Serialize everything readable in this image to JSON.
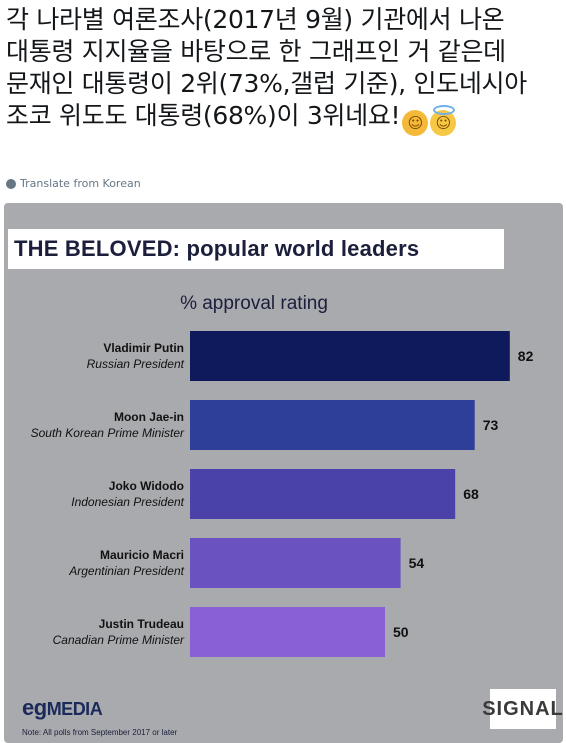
{
  "tweet": {
    "text": "각 나라별 여론조사(2017년 9월) 기관에서 나온 대통령 지지율을 바탕으로 한 그래프인 거 같은데 문재인 대통령이 2위(73%,갤럽 기준), 인도네시아 조코 위도도 대통령(68%)이 3위네요!",
    "emojis": [
      "hugging-face-icon",
      "smiling-face-with-halo-icon"
    ],
    "translate_label": "Translate from Korean"
  },
  "image": {
    "title": "THE BELOVED: popular world leaders",
    "subtitle": "% approval rating",
    "brand_prefix": "eg",
    "brand_suffix": "MEDIA",
    "watermark": "SIGNAL",
    "note": "Note: All polls from September 2017 or later"
  },
  "colors": {
    "card_bg": "#a9aaae",
    "bars": [
      "#0f1a5c",
      "#2e3f9a",
      "#4a42a8",
      "#6a52c0",
      "#8a60d6"
    ]
  },
  "chart_data": {
    "type": "bar",
    "orientation": "horizontal",
    "title": "THE BELOVED: popular world leaders",
    "subtitle": "% approval rating",
    "categories": [
      {
        "name": "Vladimir Putin",
        "role": "Russian President"
      },
      {
        "name": "Moon Jae-in",
        "role": "South Korean Prime Minister"
      },
      {
        "name": "Joko Widodo",
        "role": "Indonesian President"
      },
      {
        "name": "Mauricio Macri",
        "role": "Argentinian President"
      },
      {
        "name": "Justin Trudeau",
        "role": "Canadian Prime Minister"
      }
    ],
    "values": [
      82,
      73,
      68,
      54,
      50
    ],
    "xlim": [
      0,
      100
    ],
    "grid": false,
    "legend": "none"
  }
}
